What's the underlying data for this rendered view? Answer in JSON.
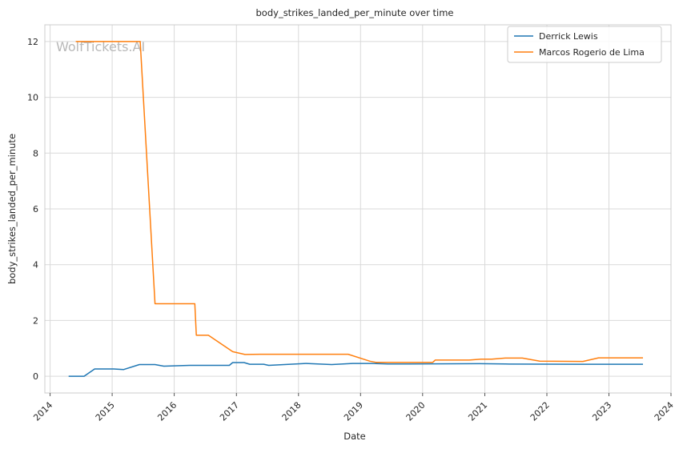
{
  "chart_data": {
    "type": "line",
    "title": "body_strikes_landed_per_minute over time",
    "xlabel": "Date",
    "ylabel": "body_strikes_landed_per_minute",
    "watermark": "WolfTickets.AI",
    "xlim": [
      "2013-12-01",
      "2024-01-01"
    ],
    "ylim": [
      -0.6,
      12.6
    ],
    "x_ticks": [
      "2014",
      "2015",
      "2016",
      "2017",
      "2018",
      "2019",
      "2020",
      "2021",
      "2022",
      "2023",
      "2024"
    ],
    "y_ticks": [
      0,
      2,
      4,
      6,
      8,
      10,
      12
    ],
    "grid": true,
    "legend_position": "top-right",
    "series": [
      {
        "name": "Derrick Lewis",
        "color": "#1f77b4",
        "points": [
          [
            "2014-04-20",
            0.0
          ],
          [
            "2014-07-20",
            0.0
          ],
          [
            "2014-09-20",
            0.26
          ],
          [
            "2015-01-10",
            0.26
          ],
          [
            "2015-03-10",
            0.24
          ],
          [
            "2015-06-10",
            0.42
          ],
          [
            "2015-09-10",
            0.42
          ],
          [
            "2015-11-01",
            0.36
          ],
          [
            "2016-04-01",
            0.39
          ],
          [
            "2016-11-20",
            0.39
          ],
          [
            "2016-12-10",
            0.49
          ],
          [
            "2017-02-15",
            0.49
          ],
          [
            "2017-03-20",
            0.43
          ],
          [
            "2017-06-10",
            0.43
          ],
          [
            "2017-07-10",
            0.39
          ],
          [
            "2018-02-15",
            0.46
          ],
          [
            "2018-07-15",
            0.42
          ],
          [
            "2018-11-15",
            0.46
          ],
          [
            "2019-03-10",
            0.46
          ],
          [
            "2019-06-10",
            0.44
          ],
          [
            "2020-12-01",
            0.45
          ],
          [
            "2021-05-01",
            0.44
          ],
          [
            "2022-07-01",
            0.43
          ],
          [
            "2023-07-20",
            0.43
          ]
        ]
      },
      {
        "name": "Marcos Rogerio de Lima",
        "color": "#ff7f0e",
        "points": [
          [
            "2014-06-01",
            12.0
          ],
          [
            "2015-06-15",
            12.0
          ],
          [
            "2015-09-10",
            2.6
          ],
          [
            "2016-05-01",
            2.6
          ],
          [
            "2016-05-10",
            1.47
          ],
          [
            "2016-07-20",
            1.47
          ],
          [
            "2016-12-10",
            0.88
          ],
          [
            "2017-02-20",
            0.78
          ],
          [
            "2017-05-20",
            0.79
          ],
          [
            "2018-10-20",
            0.79
          ],
          [
            "2019-02-25",
            0.54
          ],
          [
            "2019-04-01",
            0.5
          ],
          [
            "2020-03-01",
            0.5
          ],
          [
            "2020-03-15",
            0.58
          ],
          [
            "2020-10-01",
            0.58
          ],
          [
            "2020-12-10",
            0.61
          ],
          [
            "2021-02-10",
            0.61
          ],
          [
            "2021-05-01",
            0.65
          ],
          [
            "2021-08-10",
            0.65
          ],
          [
            "2021-11-20",
            0.54
          ],
          [
            "2022-08-01",
            0.53
          ],
          [
            "2022-11-01",
            0.66
          ],
          [
            "2023-07-20",
            0.66
          ]
        ]
      }
    ]
  }
}
